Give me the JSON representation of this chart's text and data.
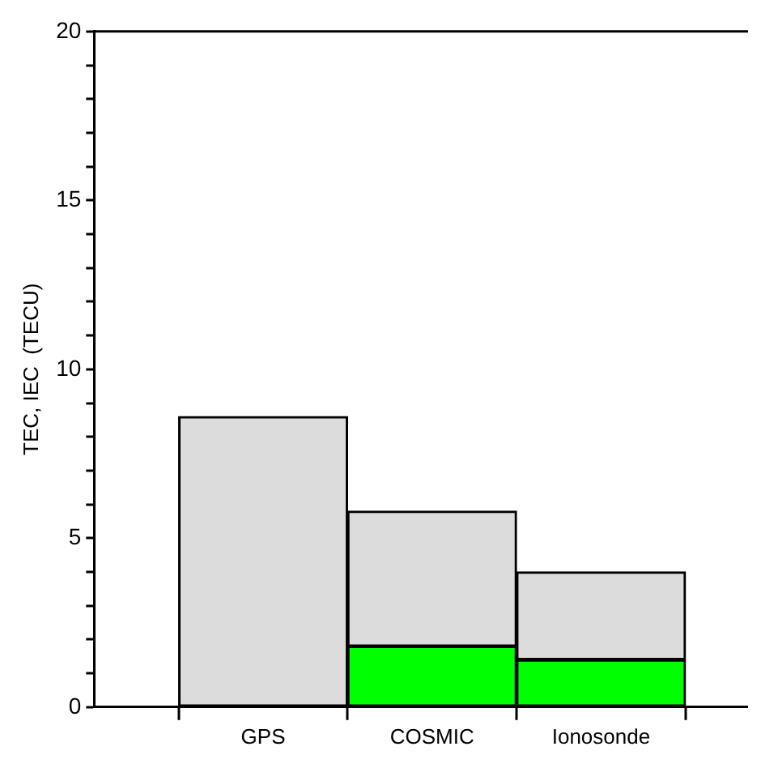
{
  "chart_data": {
    "type": "bar",
    "ylabel": "TEC, IEC  (TECU)",
    "categories": [
      "GPS",
      "COSMIC",
      "Ionosonde"
    ],
    "stacked": true,
    "series": [
      {
        "color": "#00ff00",
        "values": [
          null,
          1.8,
          1.4
        ]
      },
      {
        "color": "#dcdcdc",
        "values": [
          8.6,
          4.0,
          2.6
        ]
      }
    ],
    "ylim": [
      0,
      20
    ],
    "yticks": [
      0,
      {
        "value": 1,
        "label": null
      },
      {
        "value": 2,
        "label": null
      },
      {
        "value": 3,
        "label": null
      },
      {
        "value": 4,
        "label": null
      },
      5,
      {
        "value": 6,
        "label": null
      },
      {
        "value": 7,
        "label": null
      },
      {
        "value": 8,
        "label": null
      },
      {
        "value": 9,
        "label": null
      },
      10,
      {
        "value": 11,
        "label": null
      },
      {
        "value": 12,
        "label": null
      },
      {
        "value": 13,
        "label": null
      },
      {
        "value": 14,
        "label": null
      },
      15,
      {
        "value": 16,
        "label": null
      },
      {
        "value": 17,
        "label": null
      },
      {
        "value": 18,
        "label": null
      },
      {
        "value": 19,
        "label": null
      },
      20
    ],
    "grid": false,
    "legend": false
  }
}
